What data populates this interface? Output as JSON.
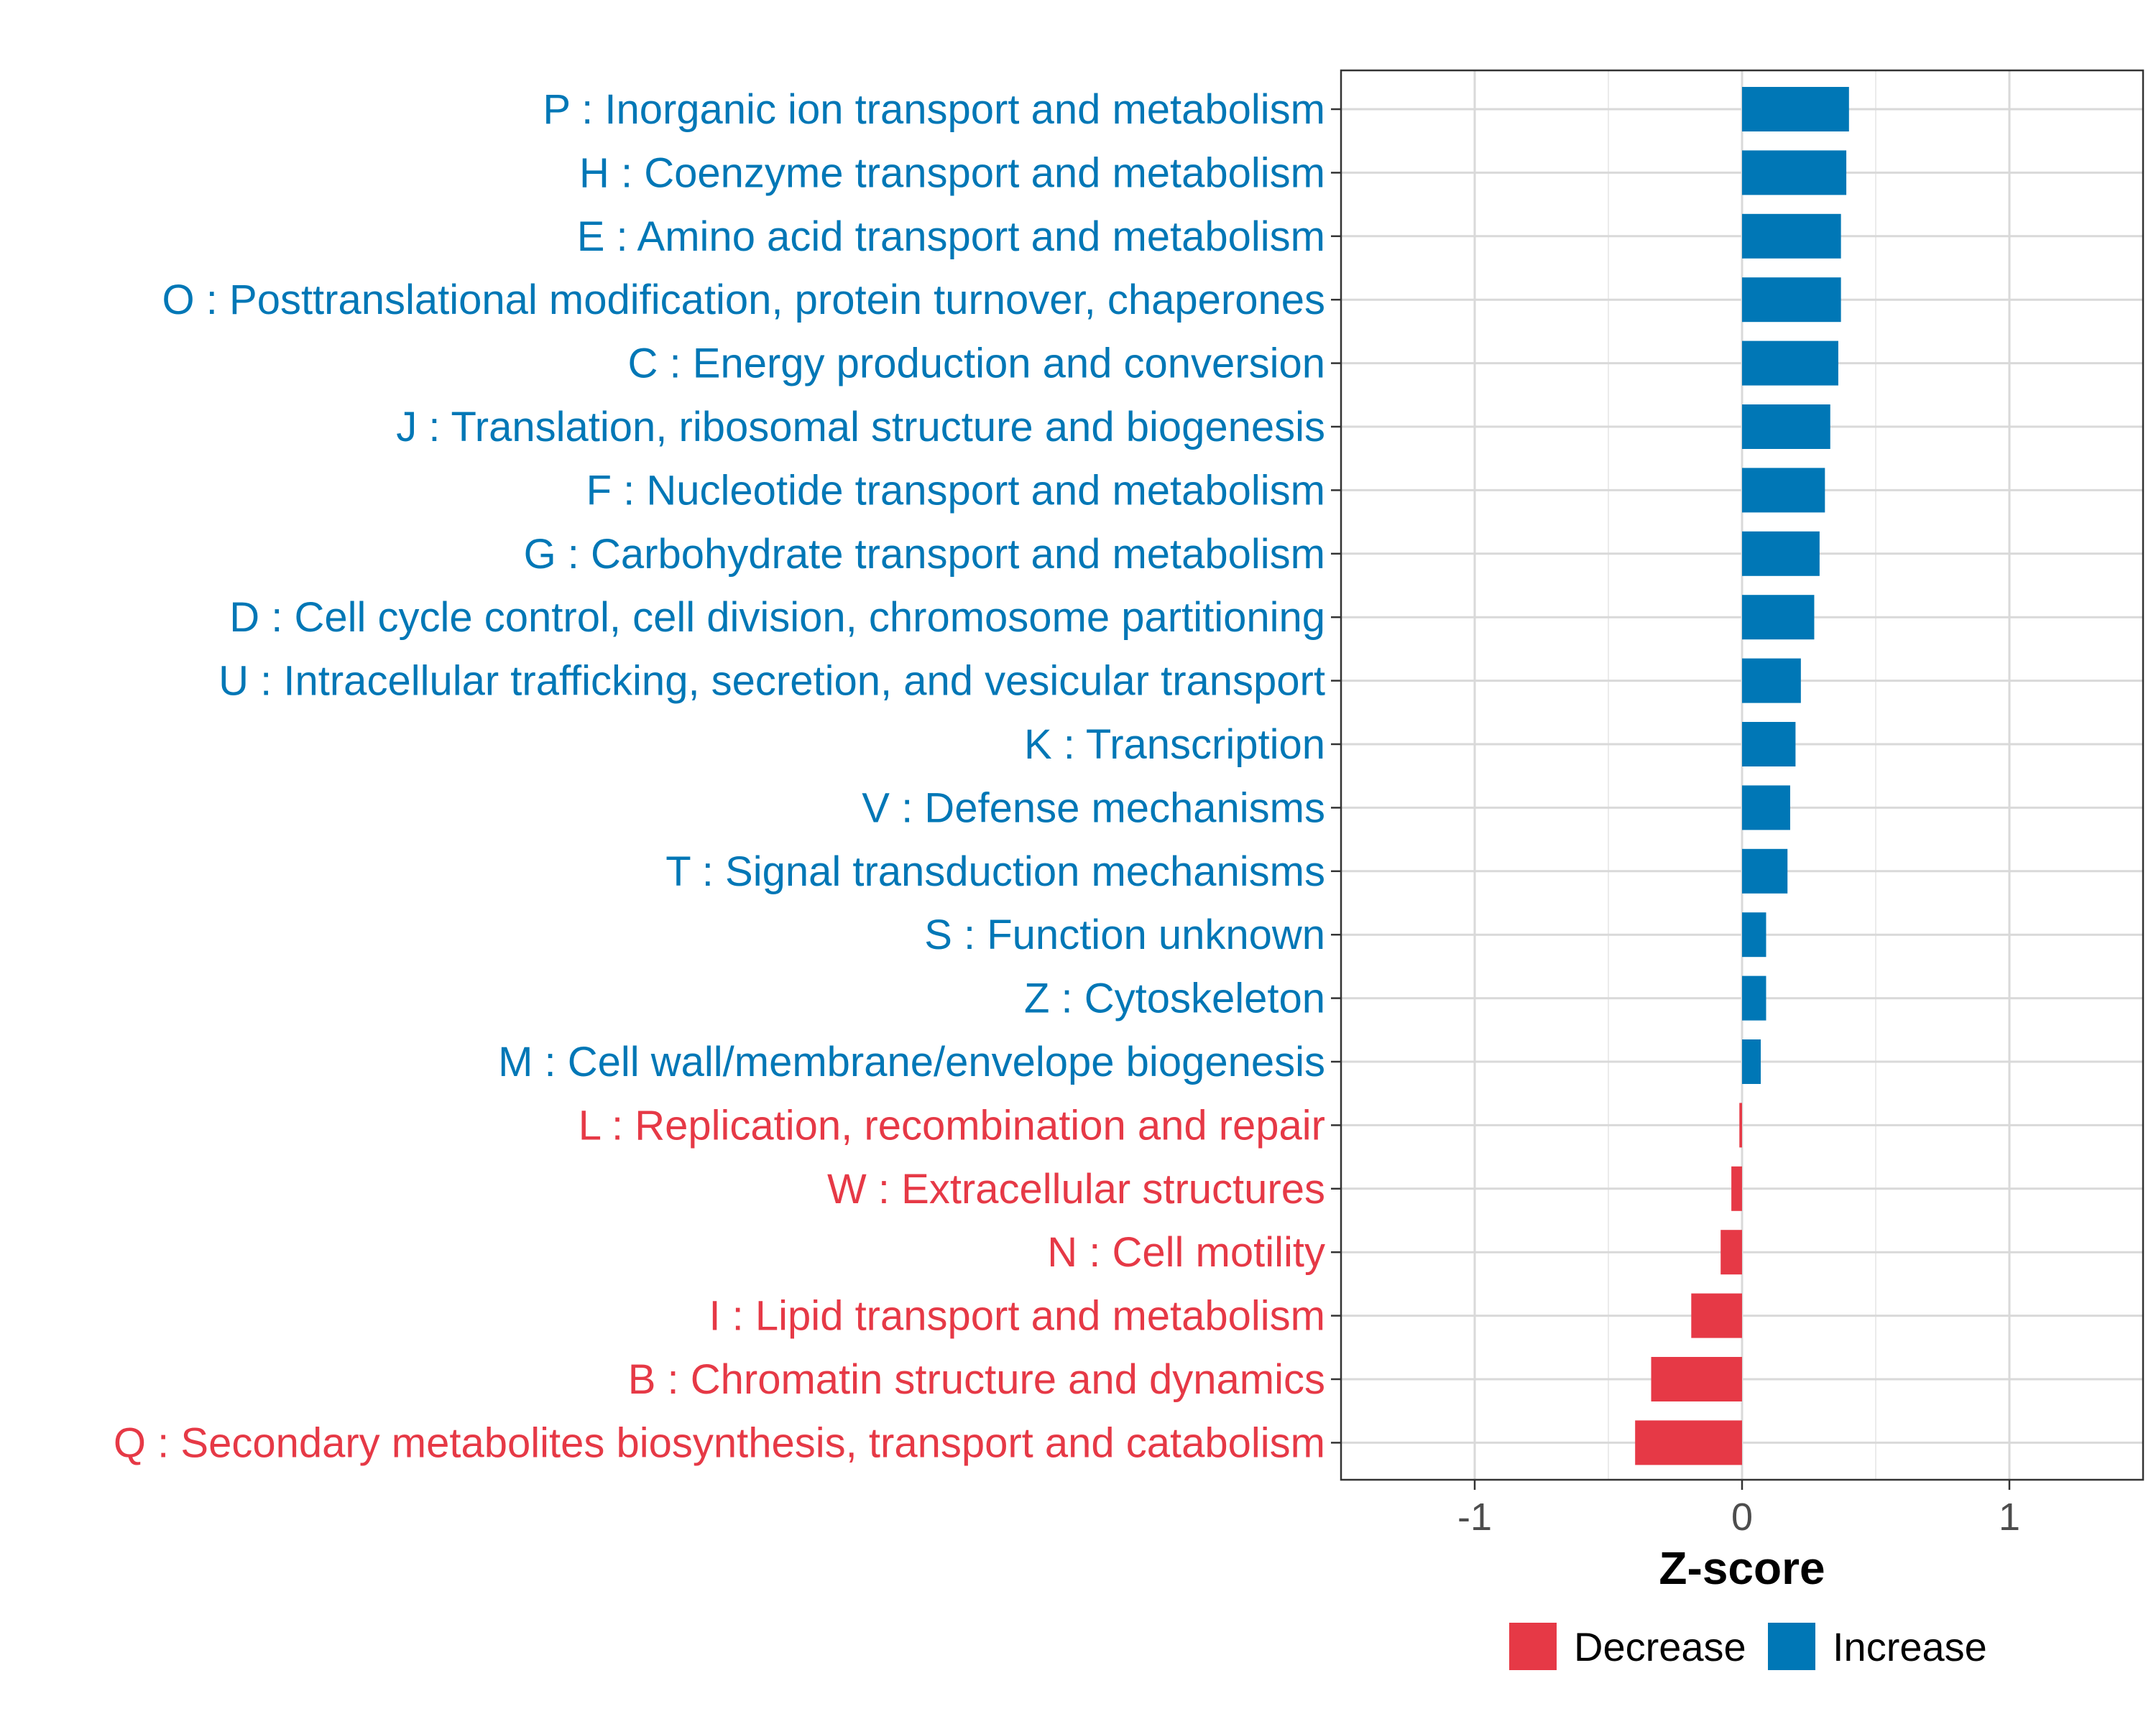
{
  "chart_data": {
    "type": "bar",
    "orientation": "horizontal",
    "title": "",
    "xlabel": "Z-score",
    "ylabel": "",
    "xlim": [
      -1.5,
      1.5
    ],
    "xticks": [
      -1,
      0,
      1
    ],
    "xtick_labels": [
      "-1",
      "0",
      "1"
    ],
    "grid": true,
    "colors": {
      "Decrease": "#e63946",
      "Increase": "#0077b6"
    },
    "legend": {
      "position": "bottom-right",
      "entries": [
        {
          "label": "Decrease",
          "color": "#e63946"
        },
        {
          "label": "Increase",
          "color": "#0077b6"
        }
      ]
    },
    "categories": [
      "P : Inorganic ion transport and metabolism",
      "H : Coenzyme transport and metabolism",
      "E : Amino acid transport and metabolism",
      "O : Posttranslational modification, protein turnover, chaperones",
      "C : Energy production and conversion",
      "J : Translation, ribosomal structure and biogenesis",
      "F : Nucleotide transport and metabolism",
      "G : Carbohydrate transport and metabolism",
      "D : Cell cycle control, cell division, chromosome partitioning",
      "U : Intracellular trafficking, secretion, and vesicular transport",
      "K : Transcription",
      "V : Defense mechanisms",
      "T : Signal transduction mechanisms",
      "S : Function unknown",
      "Z : Cytoskeleton",
      "M : Cell wall/membrane/envelope biogenesis",
      "L : Replication, recombination and repair",
      "W : Extracellular structures",
      "N : Cell motility",
      "I : Lipid transport and metabolism",
      "B : Chromatin structure and dynamics",
      "Q : Secondary metabolites biosynthesis, transport and catabolism"
    ],
    "values": [
      0.4,
      0.39,
      0.37,
      0.37,
      0.36,
      0.33,
      0.31,
      0.29,
      0.27,
      0.22,
      0.2,
      0.18,
      0.17,
      0.09,
      0.09,
      0.07,
      -0.01,
      -0.04,
      -0.08,
      -0.19,
      -0.34,
      -0.4
    ],
    "groups": [
      "Increase",
      "Increase",
      "Increase",
      "Increase",
      "Increase",
      "Increase",
      "Increase",
      "Increase",
      "Increase",
      "Increase",
      "Increase",
      "Increase",
      "Increase",
      "Increase",
      "Increase",
      "Increase",
      "Decrease",
      "Decrease",
      "Decrease",
      "Decrease",
      "Decrease",
      "Decrease"
    ]
  }
}
